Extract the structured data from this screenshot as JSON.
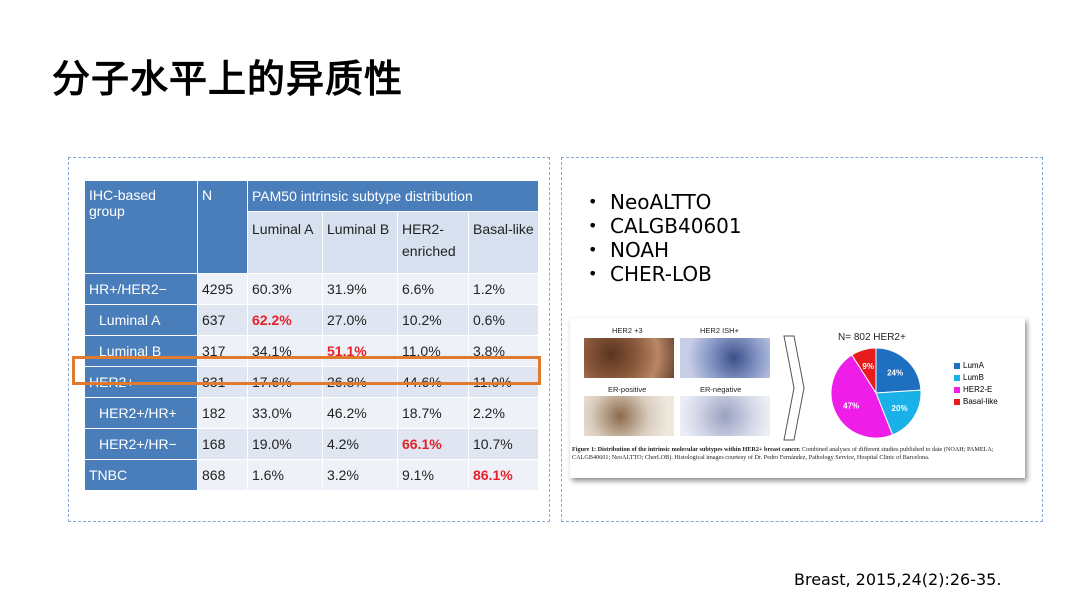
{
  "title": "分子水平上的异质性",
  "table": {
    "head": {
      "group": "IHC-based group",
      "n": "N",
      "pam50": "PAM50 intrinsic subtype distribution"
    },
    "subhead": [
      "Luminal A",
      "Luminal B",
      "HER2-enriched",
      "Basal-like"
    ],
    "rows": [
      {
        "group": "HR+/HER2−",
        "n": "4295",
        "v": [
          "60.3%",
          "31.9%",
          "6.6%",
          "1.2%"
        ]
      },
      {
        "group": "Luminal A",
        "n": "637",
        "v": [
          "62.2%",
          "27.0%",
          "10.2%",
          "0.6%"
        ]
      },
      {
        "group": "Luminal B",
        "n": "317",
        "v": [
          "34.1%",
          "51.1%",
          "11.0%",
          "3.8%"
        ]
      },
      {
        "group": "HER2+",
        "n": "831",
        "v": [
          "17.6%",
          "26.8%",
          "44.6%",
          "11.0%"
        ]
      },
      {
        "group": "HER2+/HR+",
        "n": "182",
        "v": [
          "33.0%",
          "46.2%",
          "18.7%",
          "2.2%"
        ]
      },
      {
        "group": "HER2+/HR−",
        "n": "168",
        "v": [
          "19.0%",
          "4.2%",
          "66.1%",
          "10.7%"
        ]
      },
      {
        "group": "TNBC",
        "n": "868",
        "v": [
          "1.6%",
          "3.2%",
          "9.1%",
          "86.1%"
        ]
      }
    ]
  },
  "bullets": [
    "NeoALTTO",
    "CALGB40601",
    "NOAH",
    "CHER-LOB"
  ],
  "figure": {
    "labels": {
      "her2_3": "HER2 +3",
      "her2_ish": "HER2 ISH+",
      "er_pos": "ER-positive",
      "er_neg": "ER-negative"
    },
    "n_header": "N= 802 HER2+",
    "pie": [
      {
        "name": "LumA",
        "pct": 24,
        "label": "24%",
        "color": "#1f6fc0"
      },
      {
        "name": "LumB",
        "pct": 20,
        "label": "20%",
        "color": "#1ab0e8"
      },
      {
        "name": "HER2-E",
        "pct": 47,
        "label": "47%",
        "color": "#ee1ee8"
      },
      {
        "name": "Basal-like",
        "pct": 9,
        "label": "9%",
        "color": "#e81c1c"
      }
    ],
    "caption_bold": "Figure 1: Distribution of the intrinsic molecular subtypes within HER2+ breast cancer.",
    "caption_rest": " Combined analyses of different studies published to date (NOAH; PAMELA; CALGB40601; NeoALTTO; CherLOB). Histological images courtesy of Dr. Pedro Fernández, Pathology Service, Hospital Clinic of Barcelona."
  },
  "reference": "Breast, 2015,24(2):26-35."
}
